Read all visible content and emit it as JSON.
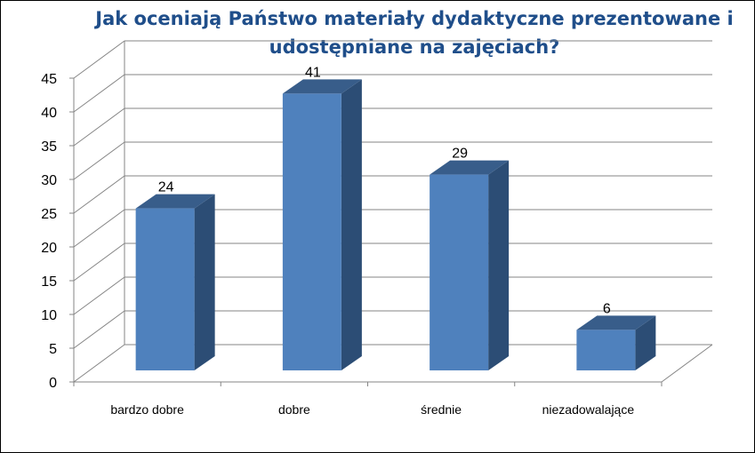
{
  "chart_data": {
    "type": "bar",
    "title": "Jak oceniają Państwo materiały dydaktyczne prezentowane i udostępniane na zajęciach?",
    "categories": [
      "bardzo dobre",
      "dobre",
      "średnie",
      "niezadowalające"
    ],
    "values": [
      24,
      41,
      29,
      6
    ],
    "ylim": [
      0,
      45
    ],
    "yticks": [
      0,
      5,
      10,
      15,
      20,
      25,
      30,
      35,
      40,
      45
    ],
    "grid": true,
    "legend": "none",
    "style": "3d-column",
    "colors": {
      "bar_front": "#4f81bd",
      "bar_side": "#2c4d75",
      "bar_top": "#385d8a",
      "title": "#1f4e8a",
      "grid": "#868686"
    }
  }
}
